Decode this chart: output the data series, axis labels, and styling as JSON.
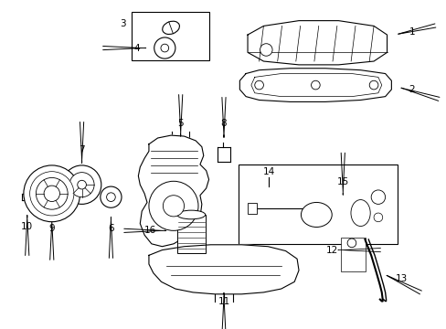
{
  "background_color": "#ffffff",
  "fig_width": 4.89,
  "fig_height": 3.6,
  "dpi": 100,
  "font_size": 7.5,
  "lw": 0.8
}
